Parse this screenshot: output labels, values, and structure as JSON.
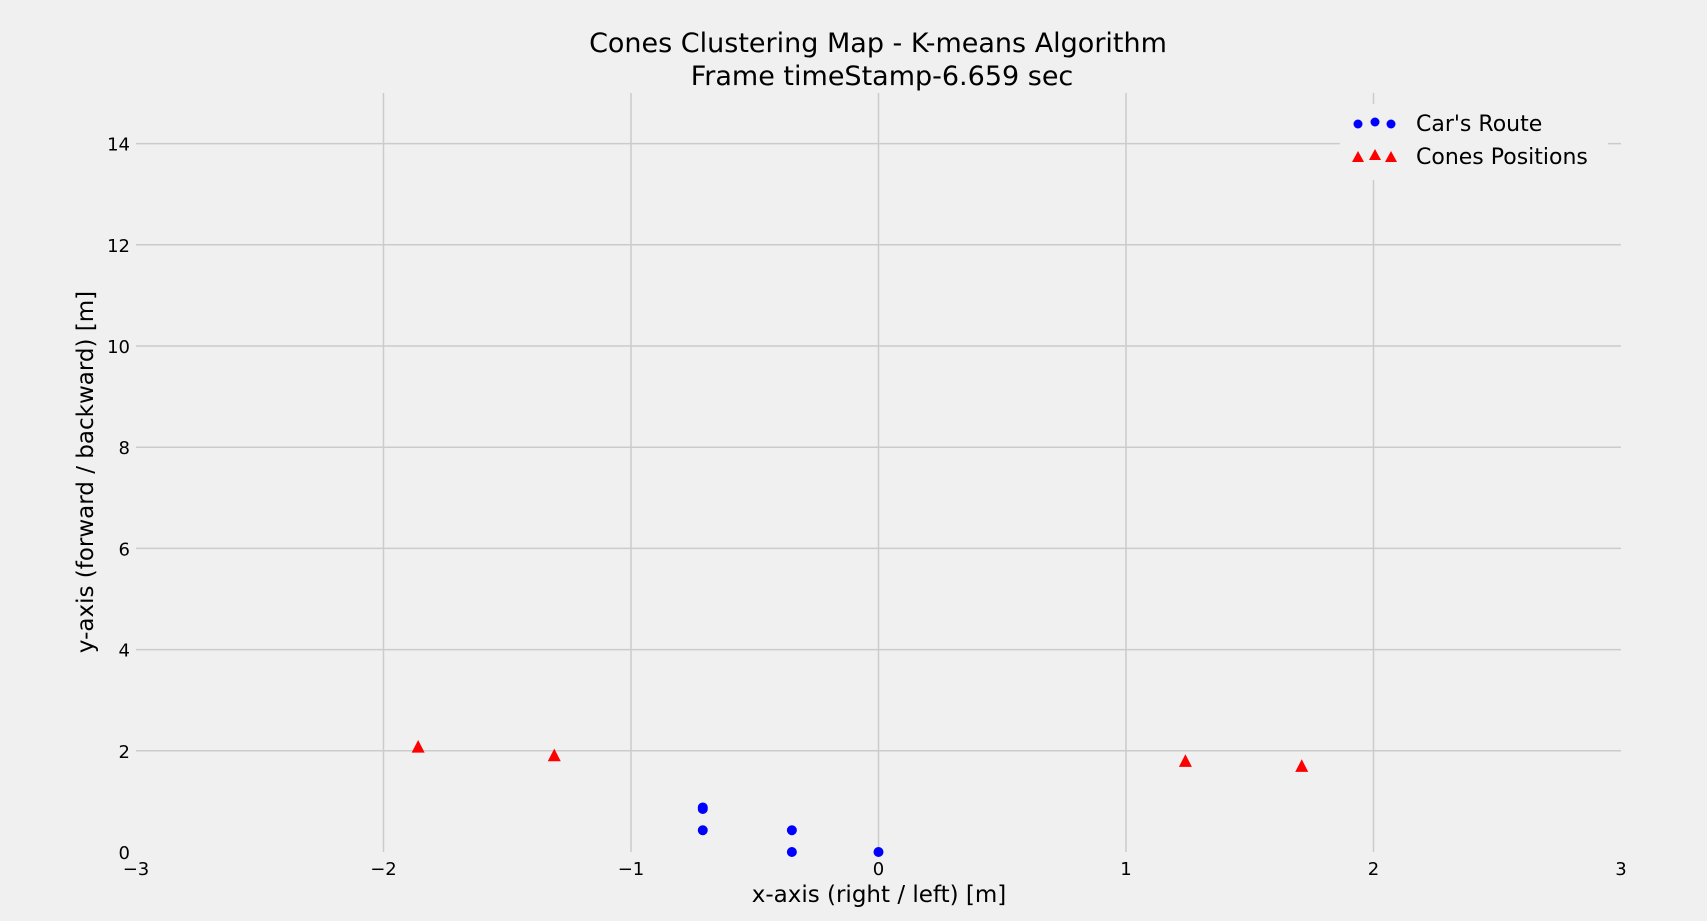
{
  "chart_data": {
    "type": "scatter",
    "title": "Cones Clustering Map - K-means Algorithm",
    "subtitle": "Frame timeStamp-6.659 sec",
    "xlabel": "x-axis (right / left) [m]",
    "ylabel": "y-axis (forward / backward) [m]",
    "xlim": [
      -3,
      3
    ],
    "ylim": [
      0,
      15
    ],
    "xticks": [
      -3,
      -2,
      -1,
      0,
      1,
      2,
      3
    ],
    "xtick_labels": [
      "−3",
      "−2",
      "−1",
      "0",
      "1",
      "2",
      "3"
    ],
    "yticks": [
      0,
      2,
      4,
      6,
      8,
      10,
      12,
      14
    ],
    "ytick_labels": [
      "0",
      "2",
      "4",
      "6",
      "8",
      "10",
      "12",
      "14"
    ],
    "grid": true,
    "legend_position": "top-right",
    "series": [
      {
        "name": "Car's Route",
        "marker": "circle",
        "color": "#0000ff",
        "points": [
          {
            "x": 0.0,
            "y": 0.0
          },
          {
            "x": -0.35,
            "y": 0.0
          },
          {
            "x": -0.35,
            "y": 0.43
          },
          {
            "x": -0.71,
            "y": 0.43
          },
          {
            "x": -0.71,
            "y": 0.85
          },
          {
            "x": -0.71,
            "y": 0.88
          }
        ]
      },
      {
        "name": "Cones Positions",
        "marker": "triangle",
        "color": "#ff0000",
        "points": [
          {
            "x": -1.86,
            "y": 2.07
          },
          {
            "x": -1.31,
            "y": 1.9
          },
          {
            "x": 1.24,
            "y": 1.79
          },
          {
            "x": 1.71,
            "y": 1.69
          }
        ]
      }
    ]
  }
}
